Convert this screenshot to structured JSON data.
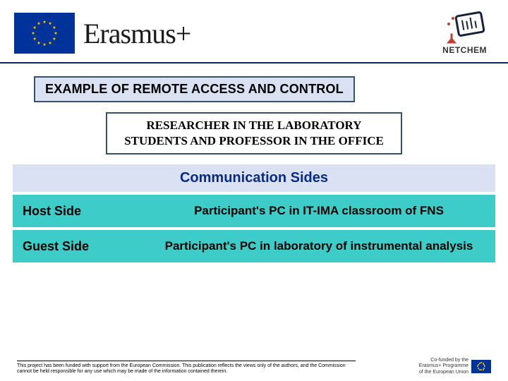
{
  "header": {
    "program_label": "Erasmus+",
    "partner_label": "NETCHEM"
  },
  "title": "EXAMPLE OF REMOTE ACCESS AND CONTROL",
  "subtitle_line1": "RESEARCHER IN THE LABORATORY",
  "subtitle_line2": "STUDENTS AND PROFESSOR IN THE OFFICE",
  "section_header": "Communication Sides",
  "rows": [
    {
      "label": "Host Side",
      "value": "Participant's PC in IT-IMA classroom of FNS"
    },
    {
      "label": "Guest Side",
      "value": "Participant's PC in laboratory of instrumental analysis"
    }
  ],
  "footer": {
    "disclaimer": "This project has been funded with support from the European Commission. This publication reflects the views only of the authors, and the Commission cannot be held responsible for any use which may be made of the information contained therein.",
    "cofunded_line1": "Co-funded by the",
    "cofunded_line2": "Erasmus+ Programme",
    "cofunded_line3": "of the European Union"
  },
  "colors": {
    "eu_blue": "#003399",
    "eu_gold": "#ffcc00",
    "banner_bg": "#d9e1f2",
    "banner_border": "#35516b",
    "row_bg": "#3dccc7",
    "section_text": "#0a2a8a",
    "divider": "#0a2a5c"
  }
}
